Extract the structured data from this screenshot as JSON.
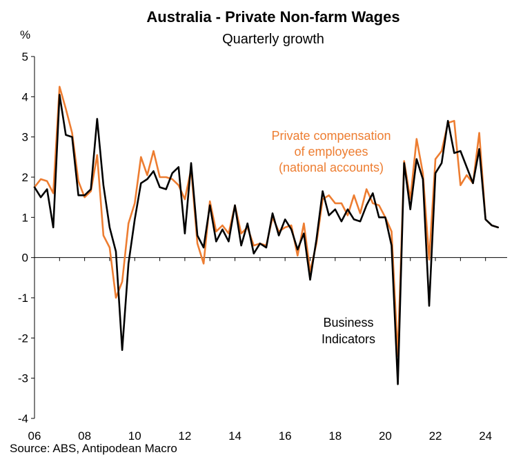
{
  "chart_data": {
    "type": "line",
    "title": "Australia - Private Non-farm Wages",
    "subtitle": "Quarterly growth",
    "ylabel": "%",
    "source": "Source: ABS, Antipodean Macro",
    "ylim": [
      -4,
      5
    ],
    "y_ticks": [
      "5",
      "4",
      "3",
      "2",
      "1",
      "0",
      "-1",
      "-2",
      "-3",
      "-4"
    ],
    "x_ticks": [
      "06",
      "08",
      "10",
      "12",
      "14",
      "16",
      "18",
      "20",
      "22",
      "24"
    ],
    "x_tick_years": [
      2006,
      2008,
      2010,
      2012,
      2014,
      2016,
      2018,
      2020,
      2022,
      2024
    ],
    "xlim": [
      2006.0,
      2025.0
    ],
    "grid": false,
    "colors": {
      "compensation": "#ED7D31",
      "business": "#000000",
      "axis": "#000000"
    },
    "annotations": {
      "compensation": [
        "Private compensation",
        "of employees",
        "(national accounts)"
      ],
      "business": [
        "Business",
        "Indicators"
      ]
    },
    "series": [
      {
        "key": "compensation",
        "values": [
          [
            2006.0,
            1.75
          ],
          [
            2006.25,
            1.95
          ],
          [
            2006.5,
            1.9
          ],
          [
            2006.75,
            1.6
          ],
          [
            2007.0,
            4.25
          ],
          [
            2007.25,
            3.7
          ],
          [
            2007.5,
            3.1
          ],
          [
            2007.75,
            1.9
          ],
          [
            2008.0,
            1.5
          ],
          [
            2008.25,
            1.65
          ],
          [
            2008.5,
            2.55
          ],
          [
            2008.75,
            0.55
          ],
          [
            2009.0,
            0.25
          ],
          [
            2009.25,
            -1.0
          ],
          [
            2009.5,
            -0.6
          ],
          [
            2009.75,
            0.85
          ],
          [
            2010.0,
            1.35
          ],
          [
            2010.25,
            2.5
          ],
          [
            2010.5,
            2.05
          ],
          [
            2010.75,
            2.65
          ],
          [
            2011.0,
            2.0
          ],
          [
            2011.25,
            2.0
          ],
          [
            2011.5,
            1.95
          ],
          [
            2011.75,
            1.8
          ],
          [
            2012.0,
            1.45
          ],
          [
            2012.25,
            2.2
          ],
          [
            2012.5,
            0.35
          ],
          [
            2012.75,
            -0.15
          ],
          [
            2013.0,
            1.4
          ],
          [
            2013.25,
            0.65
          ],
          [
            2013.5,
            0.8
          ],
          [
            2013.75,
            0.6
          ],
          [
            2014.0,
            1.3
          ],
          [
            2014.25,
            0.6
          ],
          [
            2014.5,
            0.75
          ],
          [
            2014.75,
            0.3
          ],
          [
            2015.0,
            0.35
          ],
          [
            2015.25,
            0.3
          ],
          [
            2015.5,
            1.0
          ],
          [
            2015.75,
            0.65
          ],
          [
            2016.0,
            0.75
          ],
          [
            2016.25,
            0.8
          ],
          [
            2016.5,
            0.05
          ],
          [
            2016.75,
            0.85
          ],
          [
            2017.0,
            -0.35
          ],
          [
            2017.25,
            0.35
          ],
          [
            2017.5,
            1.45
          ],
          [
            2017.75,
            1.55
          ],
          [
            2018.0,
            1.35
          ],
          [
            2018.25,
            1.35
          ],
          [
            2018.5,
            1.05
          ],
          [
            2018.75,
            1.55
          ],
          [
            2019.0,
            1.1
          ],
          [
            2019.25,
            1.7
          ],
          [
            2019.5,
            1.35
          ],
          [
            2019.75,
            1.3
          ],
          [
            2020.0,
            1.0
          ],
          [
            2020.25,
            0.65
          ],
          [
            2020.5,
            -2.45
          ],
          [
            2020.75,
            2.4
          ],
          [
            2021.0,
            1.45
          ],
          [
            2021.25,
            2.95
          ],
          [
            2021.5,
            2.1
          ],
          [
            2021.75,
            -0.05
          ],
          [
            2022.0,
            2.45
          ],
          [
            2022.25,
            2.65
          ],
          [
            2022.5,
            3.35
          ],
          [
            2022.75,
            3.4
          ],
          [
            2023.0,
            1.8
          ],
          [
            2023.25,
            2.05
          ],
          [
            2023.5,
            1.85
          ],
          [
            2023.75,
            3.1
          ],
          [
            2024.0,
            0.95
          ],
          [
            2024.25,
            0.8
          ],
          [
            2024.5,
            0.75
          ]
        ]
      },
      {
        "key": "business",
        "values": [
          [
            2006.0,
            1.75
          ],
          [
            2006.25,
            1.5
          ],
          [
            2006.5,
            1.7
          ],
          [
            2006.75,
            0.75
          ],
          [
            2007.0,
            4.05
          ],
          [
            2007.25,
            3.05
          ],
          [
            2007.5,
            3.0
          ],
          [
            2007.75,
            1.55
          ],
          [
            2008.0,
            1.55
          ],
          [
            2008.25,
            1.7
          ],
          [
            2008.5,
            3.45
          ],
          [
            2008.75,
            1.8
          ],
          [
            2009.0,
            0.75
          ],
          [
            2009.25,
            0.15
          ],
          [
            2009.5,
            -2.3
          ],
          [
            2009.75,
            -0.15
          ],
          [
            2010.0,
            0.95
          ],
          [
            2010.25,
            1.85
          ],
          [
            2010.5,
            1.95
          ],
          [
            2010.75,
            2.15
          ],
          [
            2011.0,
            1.75
          ],
          [
            2011.25,
            1.7
          ],
          [
            2011.5,
            2.1
          ],
          [
            2011.75,
            2.25
          ],
          [
            2012.0,
            0.6
          ],
          [
            2012.25,
            2.35
          ],
          [
            2012.5,
            0.55
          ],
          [
            2012.75,
            0.25
          ],
          [
            2013.0,
            1.3
          ],
          [
            2013.25,
            0.4
          ],
          [
            2013.5,
            0.7
          ],
          [
            2013.75,
            0.4
          ],
          [
            2014.0,
            1.3
          ],
          [
            2014.25,
            0.3
          ],
          [
            2014.5,
            0.85
          ],
          [
            2014.75,
            0.1
          ],
          [
            2015.0,
            0.35
          ],
          [
            2015.25,
            0.25
          ],
          [
            2015.5,
            1.1
          ],
          [
            2015.75,
            0.55
          ],
          [
            2016.0,
            0.95
          ],
          [
            2016.25,
            0.7
          ],
          [
            2016.5,
            0.2
          ],
          [
            2016.75,
            0.6
          ],
          [
            2017.0,
            -0.55
          ],
          [
            2017.25,
            0.45
          ],
          [
            2017.5,
            1.65
          ],
          [
            2017.75,
            1.05
          ],
          [
            2018.0,
            1.2
          ],
          [
            2018.25,
            0.9
          ],
          [
            2018.5,
            1.2
          ],
          [
            2018.75,
            0.95
          ],
          [
            2019.0,
            0.9
          ],
          [
            2019.25,
            1.3
          ],
          [
            2019.5,
            1.6
          ],
          [
            2019.75,
            1.0
          ],
          [
            2020.0,
            1.0
          ],
          [
            2020.25,
            0.3
          ],
          [
            2020.5,
            -3.15
          ],
          [
            2020.75,
            2.35
          ],
          [
            2021.0,
            1.2
          ],
          [
            2021.25,
            2.45
          ],
          [
            2021.5,
            1.95
          ],
          [
            2021.75,
            -1.2
          ],
          [
            2022.0,
            2.1
          ],
          [
            2022.25,
            2.35
          ],
          [
            2022.5,
            3.4
          ],
          [
            2022.75,
            2.6
          ],
          [
            2023.0,
            2.65
          ],
          [
            2023.25,
            2.25
          ],
          [
            2023.5,
            1.85
          ],
          [
            2023.75,
            2.7
          ],
          [
            2024.0,
            0.95
          ],
          [
            2024.25,
            0.8
          ],
          [
            2024.5,
            0.75
          ]
        ]
      }
    ]
  }
}
